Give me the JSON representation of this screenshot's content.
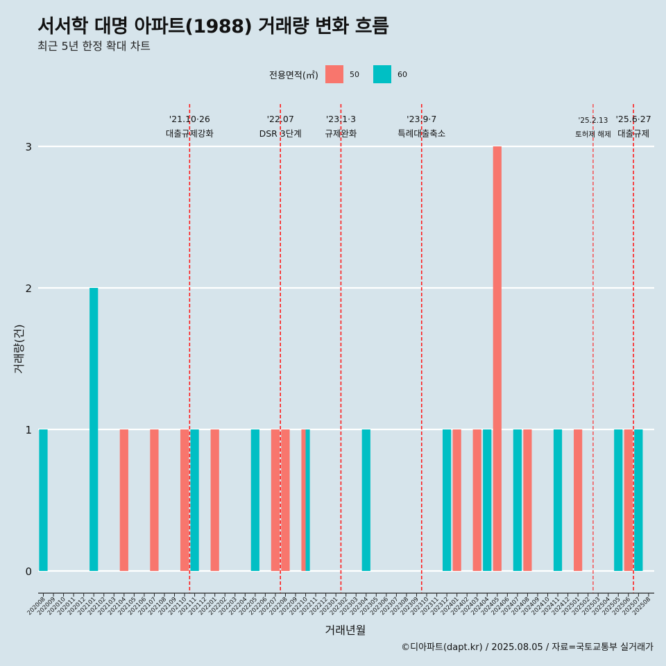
{
  "title": "서서학 대명 아파트(1988) 거래량 변화 흐름",
  "subtitle": "최근 5년 한정 확대 차트",
  "caption": "©디아파트(dapt.kr) / 2025.08.05 / 자료=국토교통부 실거래가",
  "legend": {
    "title": "전용면적(㎡)",
    "items": [
      {
        "label": "50",
        "color": "#F8766D"
      },
      {
        "label": "60",
        "color": "#00BFC4"
      }
    ]
  },
  "chart_data": {
    "type": "bar",
    "xlabel": "거래년월",
    "ylabel": "거래량(건)",
    "ylim": [
      0,
      3
    ],
    "yticks": [
      "0",
      "1",
      "2",
      "3"
    ],
    "categories": [
      "202008",
      "202009",
      "202010",
      "202011",
      "202012",
      "202101",
      "202102",
      "202103",
      "202104",
      "202105",
      "202106",
      "202107",
      "202108",
      "202109",
      "202110",
      "202111",
      "202112",
      "202201",
      "202202",
      "202203",
      "202204",
      "202205",
      "202206",
      "202207",
      "202208",
      "202209",
      "202210",
      "202211",
      "202212",
      "202301",
      "202302",
      "202303",
      "202304",
      "202305",
      "202306",
      "202307",
      "202308",
      "202309",
      "202310",
      "202311",
      "202312",
      "202401",
      "202402",
      "202403",
      "202404",
      "202405",
      "202406",
      "202407",
      "202408",
      "202409",
      "202410",
      "202411",
      "202412",
      "202501",
      "202502",
      "202503",
      "202504",
      "202505",
      "202506",
      "202507",
      "202508"
    ],
    "series": [
      {
        "name": "50",
        "color": "#F8766D",
        "values": {
          "202104": 1,
          "202107": 1,
          "202110": 1,
          "202201": 1,
          "202207": 1,
          "202208": 1,
          "202210": 1,
          "202401": 1,
          "202403": 1,
          "202405": 3,
          "202408": 1,
          "202501": 1,
          "202506": 1
        }
      },
      {
        "name": "60",
        "color": "#00BFC4",
        "values": {
          "202008": 1,
          "202101": 2,
          "202111": 1,
          "202205": 1,
          "202210": 1,
          "202304": 1,
          "202312": 1,
          "202404": 1,
          "202407": 1,
          "202411": 1,
          "202505": 1,
          "202507": 1
        }
      }
    ],
    "annotations": [
      {
        "at": "202110",
        "date": "'21.10·26",
        "label": "대출규제강화",
        "small": false
      },
      {
        "at": "202207",
        "date": "'22.07",
        "label": "DSR 3단계",
        "small": false
      },
      {
        "at": "202301",
        "date": "'23.1·3",
        "label": "규제완화",
        "small": false
      },
      {
        "at": "202309",
        "date": "'23.9·7",
        "label": "특례대출축소",
        "small": false
      },
      {
        "at": "202502",
        "date": "'25.2.13",
        "label": "토허제 해제",
        "small": true
      },
      {
        "at": "202506",
        "date": "'25.6·27",
        "label": "대출규제",
        "small": false
      }
    ]
  }
}
